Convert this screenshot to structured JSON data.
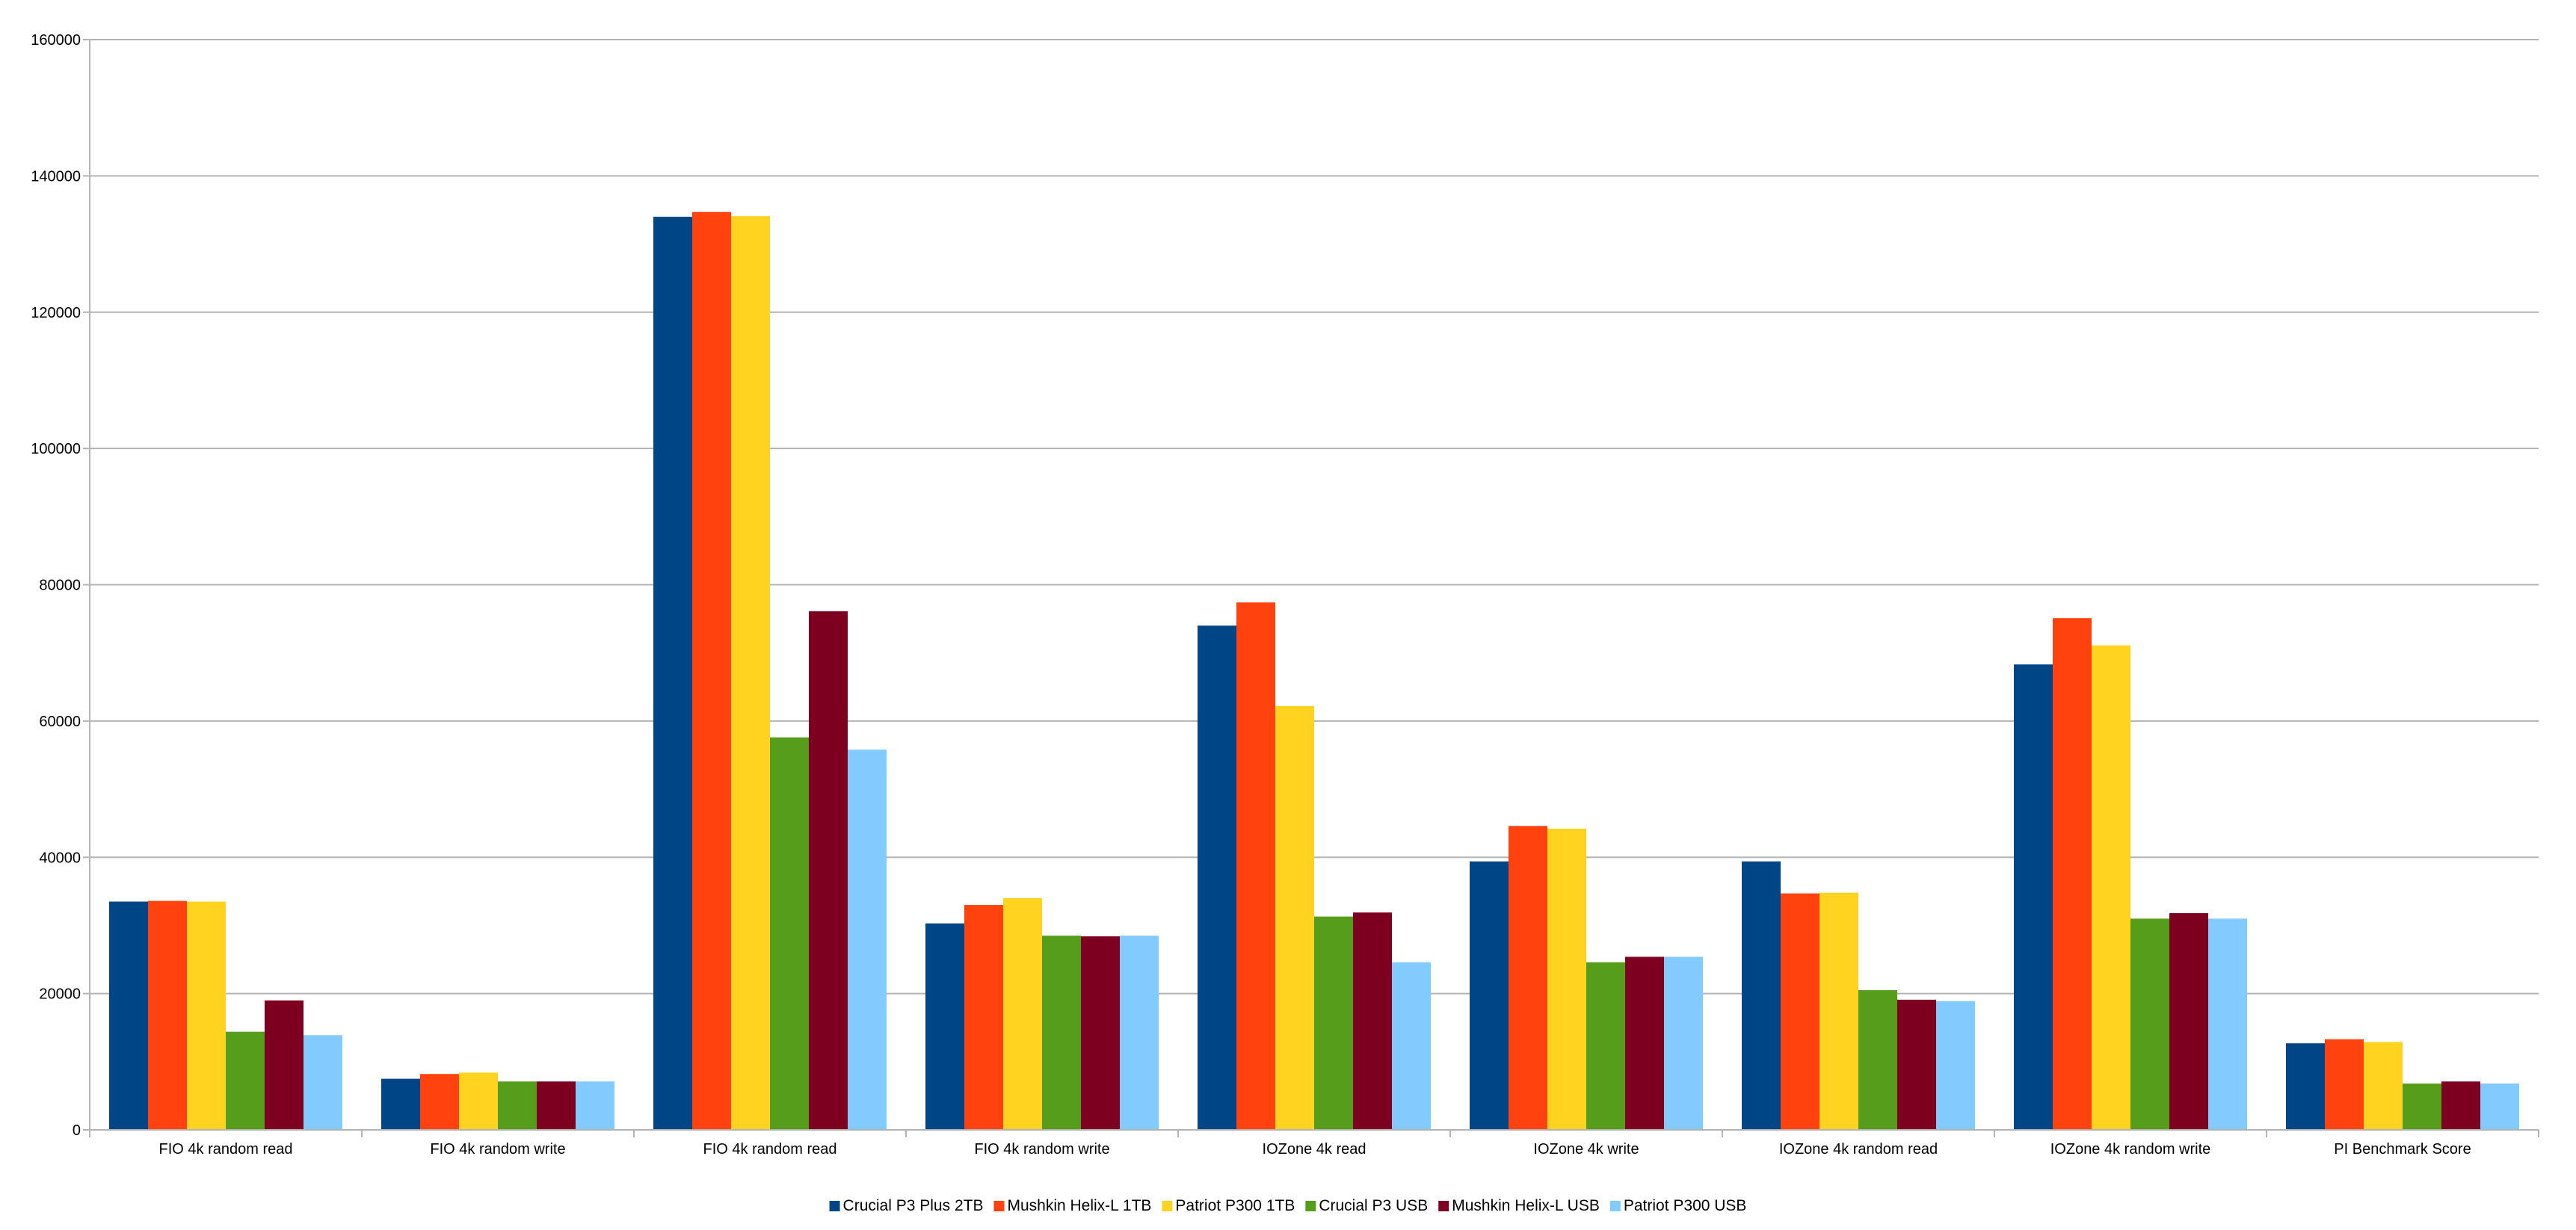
{
  "chart_data": {
    "type": "bar",
    "title": "",
    "xlabel": "",
    "ylabel": "",
    "ylim": [
      0,
      160000
    ],
    "yticks": [
      0,
      20000,
      40000,
      60000,
      80000,
      100000,
      120000,
      140000,
      160000
    ],
    "ytick_labels": [
      "0",
      "20000",
      "40000",
      "60000",
      "80000",
      "100000",
      "120000",
      "140000",
      "160000"
    ],
    "grid": true,
    "legend_position": "bottom",
    "categories": [
      "FIO 4k random read",
      "FIO 4k random write",
      "FIO 4k random read",
      "FIO 4k random write",
      "IOZone 4k read",
      "IOZone 4k write",
      "IOZone 4k random read",
      "IOZone 4k random write",
      "PI Benchmark Score"
    ],
    "series": [
      {
        "name": "Crucial P3 Plus 2TB",
        "color": "#004586",
        "values": [
          33500,
          7500,
          134000,
          30300,
          74000,
          39400,
          39400,
          68300,
          12700
        ]
      },
      {
        "name": "Mushkin Helix-L 1TB",
        "color": "#ff420e",
        "values": [
          33600,
          8200,
          134700,
          33000,
          77400,
          44600,
          34700,
          75100,
          13300
        ]
      },
      {
        "name": "Patriot P300 1TB",
        "color": "#ffd320",
        "values": [
          33500,
          8400,
          134100,
          34000,
          62200,
          44200,
          34800,
          71100,
          12900
        ]
      },
      {
        "name": "Crucial P3 USB",
        "color": "#579d1c",
        "values": [
          14400,
          7100,
          57600,
          28500,
          31300,
          24600,
          20500,
          31000,
          6800
        ]
      },
      {
        "name": "Mushkin Helix-L USB",
        "color": "#7e0021",
        "values": [
          19000,
          7100,
          76100,
          28400,
          31900,
          25400,
          19100,
          31800,
          7100
        ]
      },
      {
        "name": "Patriot P300 USB",
        "color": "#83caff",
        "values": [
          13900,
          7100,
          55800,
          28500,
          24600,
          25400,
          18900,
          31000,
          6800
        ]
      }
    ]
  }
}
